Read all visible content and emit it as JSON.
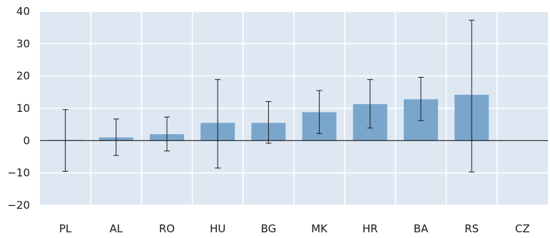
{
  "chart_data": {
    "type": "bar",
    "title": "",
    "xlabel": "",
    "ylabel": "",
    "ylim": [
      -20,
      40
    ],
    "y_ticks": [
      -20,
      -10,
      0,
      10,
      20,
      30,
      40
    ],
    "grid": true,
    "categories": [
      "PL",
      "AL",
      "RO",
      "HU",
      "BG",
      "MK",
      "HR",
      "BA",
      "RS",
      "CZ"
    ],
    "values": [
      0.2,
      1.0,
      2.0,
      5.5,
      5.5,
      8.8,
      11.3,
      12.8,
      14.2,
      null
    ],
    "error_low": [
      -9.5,
      -4.6,
      -3.2,
      -8.5,
      -0.8,
      2.2,
      3.9,
      6.2,
      -9.7,
      null
    ],
    "error_high": [
      9.6,
      6.7,
      7.3,
      18.9,
      12.1,
      15.5,
      18.9,
      19.6,
      37.3,
      null
    ],
    "colors": {
      "plot_background": "#dde8f3",
      "grid": "#ffffff",
      "bar": "#7aa6cd",
      "error_bar": "#1a1a1a",
      "zero_line": "#1a1a1a"
    }
  }
}
